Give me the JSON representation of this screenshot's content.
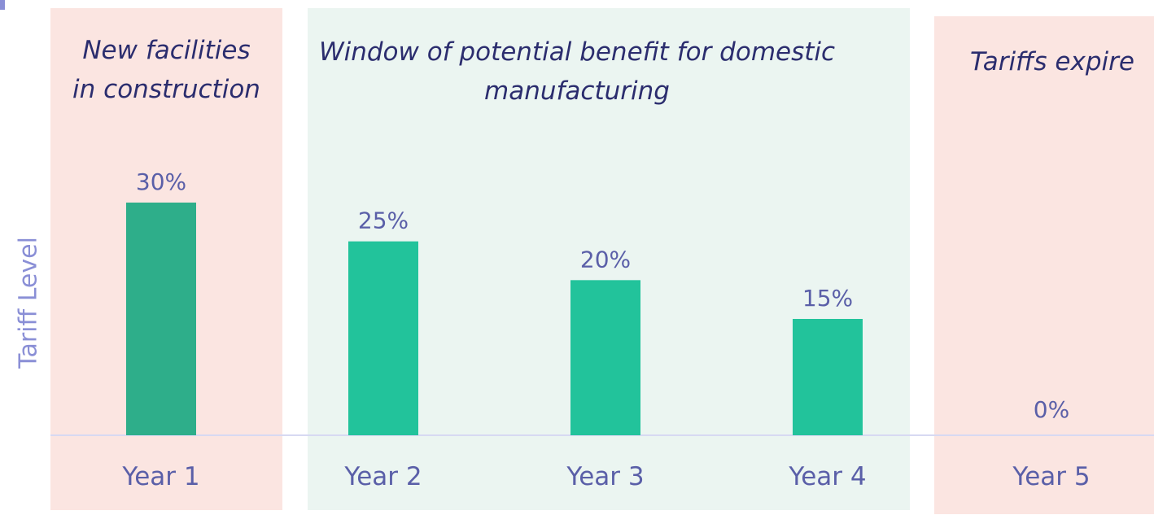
{
  "chart_data": {
    "type": "bar",
    "title": "",
    "xlabel": "",
    "ylabel": "Tariff Level",
    "categories": [
      "Year 1",
      "Year 2",
      "Year 3",
      "Year 4",
      "Year 5"
    ],
    "series": [
      {
        "values": [
          30,
          25,
          20,
          15,
          0
        ]
      }
    ],
    "value_labels": [
      "30%",
      "25%",
      "20%",
      "15%",
      "0%"
    ],
    "ylim": [
      0,
      40
    ],
    "grid": false,
    "legend": "none",
    "phases": [
      {
        "label": "New facilities in construction",
        "categories": [
          "Year 1"
        ],
        "color": "#fbe5e1"
      },
      {
        "label": "Window of potential benefit for domestic manufacturing",
        "categories": [
          "Year 2",
          "Year 3",
          "Year 4"
        ],
        "color": "#ebf5f1"
      },
      {
        "label": "Tariffs expire",
        "categories": [
          "Year 5"
        ],
        "color": "#fbe5e1"
      }
    ],
    "bar_colors": [
      "#2eae8a",
      "#22c39b",
      "#22c39b",
      "#22c39b",
      "#22c39b"
    ],
    "text_color": "#5a5fa8",
    "axis_color": "#d7d9f2"
  },
  "phase_titles": {
    "p1_line1": "New facilities",
    "p1_line2": "in construction",
    "p2_line1": "Window of potential benefit for domestic",
    "p2_line2": "manufacturing",
    "p3_line1": "Tariffs expire"
  }
}
